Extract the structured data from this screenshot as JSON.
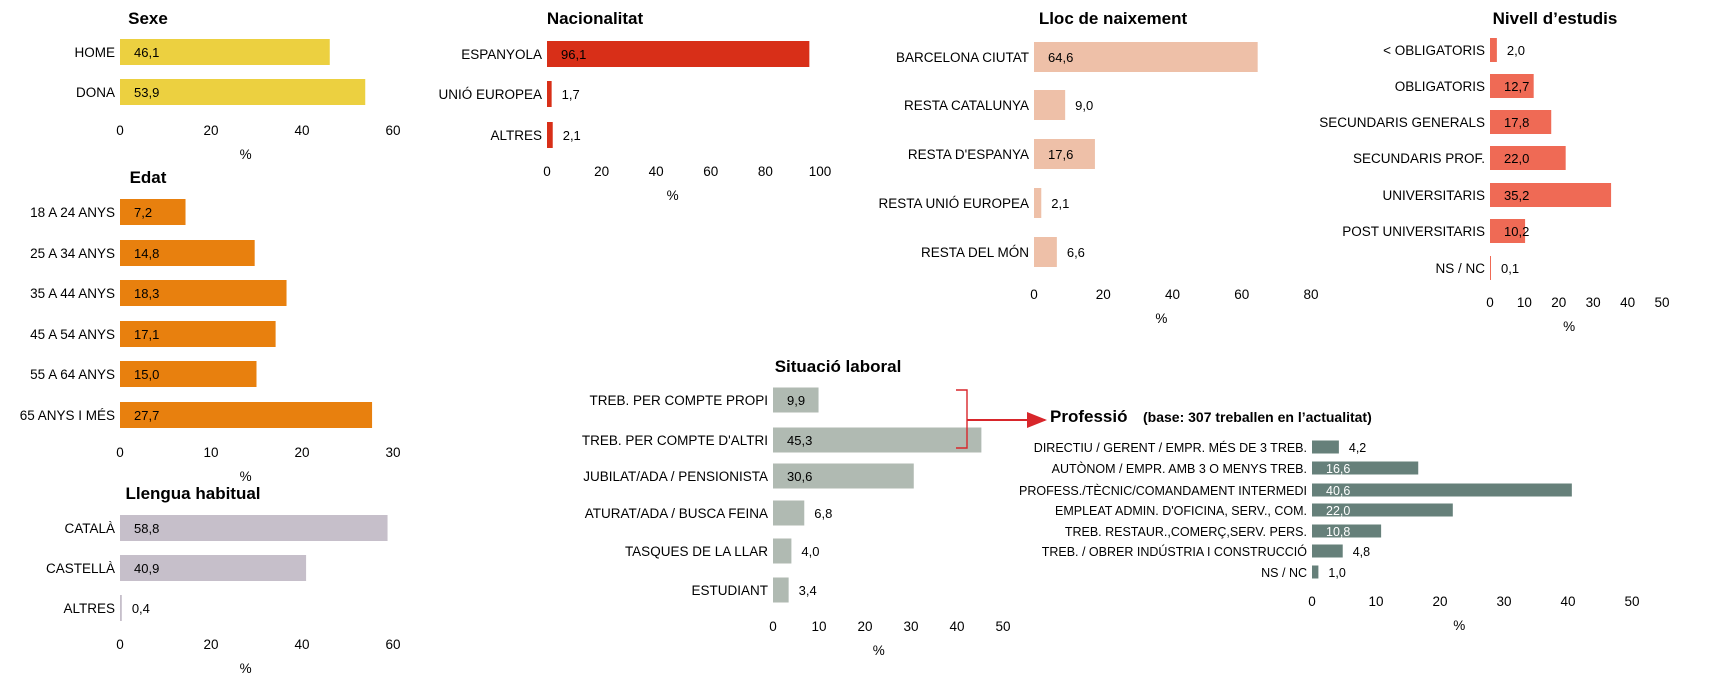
{
  "unit_label": "%",
  "chart_data": [
    {
      "id": "sexe",
      "type": "bar",
      "title": "Sexe",
      "color": "#ecd040",
      "categories": [
        "HOME",
        "DONA"
      ],
      "values": [
        46.1,
        53.9
      ],
      "labels": [
        "46,1",
        "53,9"
      ],
      "ticks": [
        0,
        20,
        40,
        60
      ],
      "xlim": [
        0,
        60
      ],
      "xlabel": "%"
    },
    {
      "id": "edat",
      "type": "bar",
      "title": "Edat",
      "color": "#e8800e",
      "categories": [
        "18 A 24 ANYS",
        "25 A 34 ANYS",
        "35 A 44 ANYS",
        "45 A 54 ANYS",
        "55 A 64 ANYS",
        "65 ANYS I MÉS"
      ],
      "values": [
        7.2,
        14.8,
        18.3,
        17.1,
        15.0,
        27.7
      ],
      "labels": [
        "7,2",
        "14,8",
        "18,3",
        "17,1",
        "15,0",
        "27,7"
      ],
      "ticks": [
        0,
        10,
        20,
        30
      ],
      "xlim": [
        0,
        30
      ],
      "xlabel": "%"
    },
    {
      "id": "llengua",
      "type": "bar",
      "title": "Llengua habitual",
      "color": "#c6bfca",
      "categories": [
        "CATALÀ",
        "CASTELLÀ",
        "ALTRES"
      ],
      "values": [
        58.8,
        40.9,
        0.4
      ],
      "labels": [
        "58,8",
        "40,9",
        "0,4"
      ],
      "ticks": [
        0,
        20,
        40,
        60
      ],
      "xlim": [
        0,
        60
      ],
      "xlabel": "%"
    },
    {
      "id": "nacionalitat",
      "type": "bar",
      "title": "Nacionalitat",
      "color": "#d82f18",
      "categories": [
        "ESPANYOLA",
        "UNIÓ EUROPEA",
        "ALTRES"
      ],
      "values": [
        96.1,
        1.7,
        2.1
      ],
      "labels": [
        "96,1",
        "1,7",
        "2,1"
      ],
      "ticks": [
        0,
        20,
        40,
        60,
        80,
        100
      ],
      "xlim": [
        0,
        100
      ],
      "xlabel": "%"
    },
    {
      "id": "lloc",
      "type": "bar",
      "title": "Lloc de naixement",
      "color": "#eec0a8",
      "categories": [
        "BARCELONA CIUTAT",
        "RESTA CATALUNYA",
        "RESTA D'ESPANYA",
        "RESTA UNIÓ EUROPEA",
        "RESTA DEL MÓN"
      ],
      "values": [
        64.6,
        9.0,
        17.6,
        2.1,
        6.6
      ],
      "labels": [
        "64,6",
        "9,0",
        "17,6",
        "2,1",
        "6,6"
      ],
      "ticks": [
        0,
        20,
        40,
        60,
        80
      ],
      "xlim": [
        0,
        80
      ],
      "xlabel": "%"
    },
    {
      "id": "estudis",
      "type": "bar",
      "title": "Nivell d’estudis",
      "color": "#ef6a55",
      "categories": [
        "< OBLIGATORIS",
        "OBLIGATORIS",
        "SECUNDARIS GENERALS",
        "SECUNDARIS PROF.",
        "UNIVERSITARIS",
        "POST UNIVERSITARIS",
        "NS / NC"
      ],
      "values": [
        2.0,
        12.7,
        17.8,
        22.0,
        35.2,
        10.2,
        0.1
      ],
      "labels": [
        "2,0",
        "12,7",
        "17,8",
        "22,0",
        "35,2",
        "10,2",
        "0,1"
      ],
      "ticks": [
        0,
        10,
        20,
        30,
        40,
        50
      ],
      "xlim": [
        0,
        50
      ],
      "xlabel": "%"
    },
    {
      "id": "situacio",
      "type": "bar",
      "title": "Situació laboral",
      "color": "#b0bab2",
      "categories": [
        "TREB. PER COMPTE PROPI",
        "TREB. PER COMPTE D'ALTRI",
        "JUBILAT/ADA / PENSIONISTA",
        "ATURAT/ADA / BUSCA FEINA",
        "TASQUES DE LA LLAR",
        "ESTUDIANT"
      ],
      "values": [
        9.9,
        45.3,
        30.6,
        6.8,
        4.0,
        3.4
      ],
      "labels": [
        "9,9",
        "45,3",
        "30,6",
        "6,8",
        "4,0",
        "3,4"
      ],
      "ticks": [
        0,
        10,
        20,
        30,
        40,
        50
      ],
      "xlim": [
        0,
        50
      ],
      "xlabel": "%"
    },
    {
      "id": "professio",
      "type": "bar",
      "title": "Professió",
      "subtitle": "(base: 307  treballen en l’actualitat)",
      "color": "#66807a",
      "categories": [
        "DIRECTIU / GERENT / EMPR. MÉS DE 3 TREB.",
        "AUTÒNOM / EMPR. AMB 3 O MENYS TREB.",
        "PROFESS./TÈCNIC/COMANDAMENT INTERMEDI",
        "EMPLEAT ADMIN. D'OFICINA, SERV., COM.",
        "TREB. RESTAUR.,COMERÇ,SERV. PERS.",
        "TREB. / OBRER INDÚSTRIA I CONSTRUCCIÓ",
        "NS / NC"
      ],
      "values": [
        4.2,
        16.6,
        40.6,
        22.0,
        10.8,
        4.8,
        1.0
      ],
      "labels": [
        "4,2",
        "16,6",
        "40,6",
        "22,0",
        "10,8",
        "4,8",
        "1,0"
      ],
      "ticks": [
        0,
        10,
        20,
        30,
        40,
        50
      ],
      "xlim": [
        0,
        50
      ],
      "xlabel": "%"
    }
  ]
}
